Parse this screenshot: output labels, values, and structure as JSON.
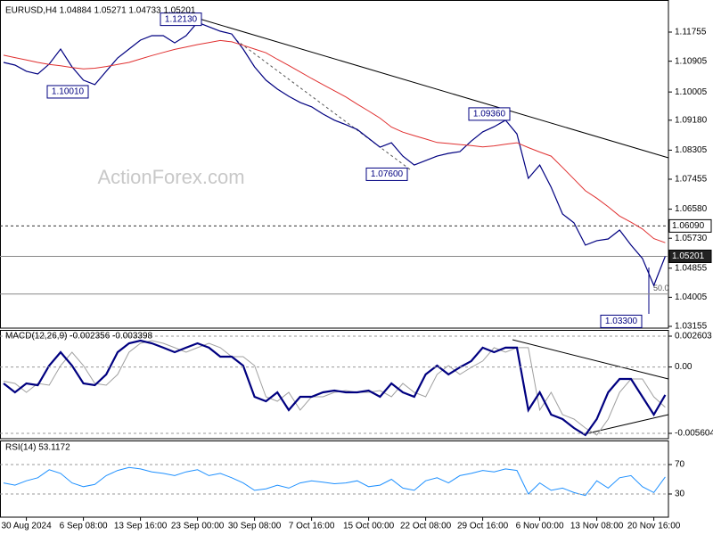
{
  "chart_data": [
    {
      "type": "line",
      "title": "EURUSD,H4 1.04884 1.05271 1.04733 1.05201",
      "watermark": "ActionForex.com",
      "ylim": [
        1.03103,
        1.12563
      ],
      "yticks": [
        1.11755,
        1.10905,
        1.10005,
        {
          "value": 1.0918,
          "label": "1.09180"
        },
        1.08305,
        1.07455,
        {
          "value": 1.0658,
          "label": "1.06580"
        },
        {
          "value": 1.0573,
          "label": "1.05730"
        },
        1.04855,
        1.04005,
        1.03155
      ],
      "series": [
        {
          "color": "#000080",
          "width": 1.2,
          "values": [
            1.1087,
            1.1079,
            1.1061,
            1.1053,
            1.1082,
            1.1126,
            1.1074,
            1.1035,
            1.1022,
            1.1061,
            1.11,
            1.1126,
            1.1152,
            1.1165,
            1.1165,
            1.1144,
            1.1165,
            1.1204,
            1.1191,
            1.1178,
            1.117,
            1.1126,
            1.1074,
            1.1035,
            1.1009,
            1.0988,
            1.097,
            1.0957,
            1.0936,
            1.0918,
            1.0905,
            1.0891,
            1.0865,
            1.0839,
            1.0852,
            1.0813,
            1.0787,
            1.08,
            1.0813,
            1.0821,
            1.0826,
            1.0857,
            1.0884,
            1.0899,
            1.0918,
            1.0878,
            1.0748,
            1.0787,
            1.0722,
            1.0644,
            1.0618,
            1.0553,
            1.0566,
            1.0571,
            1.0597,
            1.0553,
            1.0514,
            1.0435,
            1.05201
          ]
        },
        {
          "color": "#e03030",
          "width": 1,
          "values": [
            1.1108,
            1.1101,
            1.1094,
            1.1087,
            1.1081,
            1.1077,
            1.1072,
            1.1068,
            1.107,
            1.1075,
            1.1081,
            1.1087,
            1.1097,
            1.1107,
            1.1116,
            1.1125,
            1.1132,
            1.1139,
            1.1145,
            1.1151,
            1.1147,
            1.1137,
            1.1126,
            1.1115,
            1.1096,
            1.1078,
            1.1059,
            1.104,
            1.1022,
            1.1004,
            1.0986,
            1.0965,
            1.0945,
            1.0924,
            1.0898,
            1.0883,
            1.0873,
            1.0863,
            1.0853,
            1.085,
            1.0847,
            1.0844,
            1.084,
            1.0843,
            1.0848,
            1.0852,
            1.0838,
            1.0825,
            1.0813,
            1.078,
            1.0746,
            1.0712,
            1.069,
            1.0665,
            1.0638,
            1.062,
            1.06,
            1.0572,
            1.056
          ]
        }
      ],
      "levels": [
        {
          "value": 1.0609,
          "label": "1.06090",
          "dashed": true
        },
        {
          "value": 1.05201,
          "label": "1.05201",
          "dark": true
        },
        {
          "value": 1.041,
          "label": "50.0"
        }
      ],
      "annotations": [
        {
          "value": 1.1213,
          "label": "1.12130"
        },
        {
          "value": 1.1001,
          "label": "1.10010"
        },
        {
          "value": 1.076,
          "label": "1.07600"
        },
        {
          "value": 1.0936,
          "label": "1.09360"
        },
        {
          "value": 1.033,
          "label": "1.03300"
        }
      ]
    },
    {
      "type": "line",
      "title": "MACD(12,26,9) -0.002356 -0.003398",
      "ylim": [
        -0.006056,
        0.00313
      ],
      "yticks": [
        0.002603,
        {
          "value": 0,
          "label": "0.00"
        },
        -0.005604
      ],
      "grid": true,
      "series": [
        {
          "color": "#a0a0a0",
          "width": 1,
          "values": [
            -0.0012,
            -0.00139,
            -0.00214,
            -0.00139,
            -0.00154,
            0.00012,
            0.00125,
            0.00012,
            -0.00139,
            -0.00154,
            -0.00063,
            0.00125,
            0.002,
            0.00223,
            0.002,
            0.00163,
            0.00125,
            0.00163,
            0.002,
            0.00163,
            0.00087,
            0.00087,
            0.00012,
            -0.00252,
            -0.00289,
            -0.00214,
            -0.00364,
            -0.00252,
            -0.00252,
            -0.00214,
            -0.00199,
            -0.00214,
            -0.00214,
            -0.00199,
            -0.00252,
            -0.00139,
            -0.00214,
            -0.00252,
            -0.00063,
            0.00012,
            -0.00063,
            -3e-05,
            0.0005,
            0.00163,
            0.00125,
            0.00163,
            0.00163,
            -0.00364,
            -0.00214,
            -0.00402,
            -0.0044,
            -0.00515,
            -0.00575,
            -0.0044,
            -0.00214,
            -0.00101,
            -0.00101,
            -0.00252,
            -0.003398
          ]
        },
        {
          "color": "#000080",
          "width": 2.2,
          "values": [
            -0.00139,
            -0.00214,
            -0.00139,
            -0.00154,
            0.00012,
            0.00125,
            0.00012,
            -0.00139,
            -0.00154,
            -0.00063,
            0.00125,
            0.002,
            0.00223,
            0.002,
            0.00163,
            0.00125,
            0.00163,
            0.002,
            0.00163,
            0.00087,
            0.00087,
            0.00012,
            -0.00252,
            -0.00289,
            -0.00214,
            -0.00364,
            -0.00252,
            -0.00252,
            -0.00214,
            -0.00199,
            -0.00214,
            -0.00214,
            -0.00199,
            -0.00252,
            -0.00139,
            -0.00214,
            -0.00252,
            -0.00063,
            0.00012,
            -0.00063,
            -3e-05,
            0.0005,
            0.00163,
            0.00125,
            0.00163,
            0.00163,
            -0.00364,
            -0.00214,
            -0.00402,
            -0.0044,
            -0.00515,
            -0.00575,
            -0.0044,
            -0.00214,
            -0.00101,
            -0.00101,
            -0.00252,
            -0.00402,
            -0.002356
          ]
        }
      ]
    },
    {
      "type": "line",
      "title": "RSI(14) 53.1172",
      "ylim": [
        -1.5,
        101.5
      ],
      "yticks": [
        70,
        30
      ],
      "grid": true,
      "categories": [
        null,
        null,
        "30 Aug 2024",
        null,
        null,
        null,
        null,
        "6 Sep 08:00",
        null,
        null,
        null,
        null,
        "13 Sep 16:00",
        null,
        null,
        null,
        null,
        "23 Sep 00:00",
        null,
        null,
        null,
        null,
        "30 Sep 08:00",
        null,
        null,
        null,
        null,
        "7 Oct 16:00",
        null,
        null,
        null,
        null,
        "15 Oct 00:00",
        null,
        null,
        null,
        null,
        "22 Oct 08:00",
        null,
        null,
        null,
        null,
        "29 Oct 16:00",
        null,
        null,
        null,
        null,
        "6 Nov 00:00",
        null,
        null,
        null,
        null,
        "13 Nov 08:00",
        null,
        null,
        null,
        null,
        "20 Nov 16:00",
        null
      ],
      "series": [
        {
          "color": "#1e90ff",
          "width": 1,
          "values": [
            45,
            42,
            48,
            52,
            63,
            58,
            45,
            40,
            43,
            55,
            62,
            66,
            64,
            60,
            58,
            55,
            60,
            63,
            55,
            58,
            52,
            45,
            35,
            37,
            42,
            38,
            45,
            48,
            46,
            44,
            45,
            48,
            40,
            42,
            50,
            38,
            35,
            48,
            52,
            45,
            55,
            58,
            62,
            60,
            64,
            62,
            30,
            45,
            35,
            38,
            32,
            28,
            48,
            38,
            52,
            55,
            40,
            32,
            53.1172
          ]
        }
      ]
    }
  ]
}
